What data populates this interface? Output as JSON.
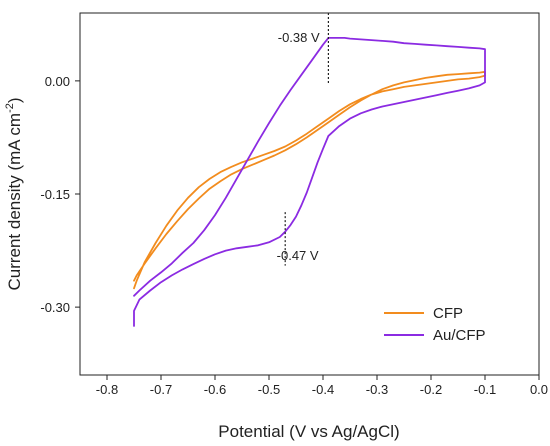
{
  "chart_data": {
    "type": "line",
    "xlabel": "Potential (V vs Ag/AgCl)",
    "ylabel_main": "Current density (mA cm",
    "ylabel_sup": "-2",
    "ylabel_close": ")",
    "xlim": [
      -0.85,
      0.0
    ],
    "ylim": [
      -0.39,
      0.09
    ],
    "xticks": [
      -0.8,
      -0.7,
      -0.6,
      -0.5,
      -0.4,
      -0.3,
      -0.2,
      -0.1,
      0.0
    ],
    "xtick_labels": [
      "-0.8",
      "-0.7",
      "-0.6",
      "-0.5",
      "-0.4",
      "-0.3",
      "-0.2",
      "-0.1",
      "0.0"
    ],
    "yticks": [
      0.0,
      -0.15,
      -0.3
    ],
    "ytick_labels": [
      "0.00",
      "-0.15",
      "-0.30"
    ],
    "grid": false,
    "legend_position": "bottom-right",
    "series": [
      {
        "name": "CFP",
        "color": "#F28C1E",
        "x": [
          -0.75,
          -0.745,
          -0.73,
          -0.71,
          -0.69,
          -0.67,
          -0.65,
          -0.63,
          -0.61,
          -0.59,
          -0.57,
          -0.55,
          -0.53,
          -0.51,
          -0.49,
          -0.47,
          -0.45,
          -0.43,
          -0.41,
          -0.39,
          -0.37,
          -0.35,
          -0.33,
          -0.31,
          -0.29,
          -0.27,
          -0.25,
          -0.23,
          -0.21,
          -0.19,
          -0.17,
          -0.15,
          -0.13,
          -0.11,
          -0.1,
          -0.1,
          -0.11,
          -0.13,
          -0.15,
          -0.17,
          -0.19,
          -0.21,
          -0.23,
          -0.25,
          -0.27,
          -0.29,
          -0.31,
          -0.33,
          -0.35,
          -0.37,
          -0.39,
          -0.41,
          -0.43,
          -0.45,
          -0.47,
          -0.49,
          -0.51,
          -0.53,
          -0.55,
          -0.57,
          -0.59,
          -0.61,
          -0.63,
          -0.65,
          -0.67,
          -0.69,
          -0.71,
          -0.73,
          -0.745,
          -0.75
        ],
        "y": [
          -0.275,
          -0.265,
          -0.24,
          -0.215,
          -0.192,
          -0.172,
          -0.155,
          -0.141,
          -0.13,
          -0.121,
          -0.114,
          -0.108,
          -0.103,
          -0.098,
          -0.093,
          -0.087,
          -0.079,
          -0.07,
          -0.06,
          -0.05,
          -0.04,
          -0.031,
          -0.024,
          -0.018,
          -0.014,
          -0.011,
          -0.008,
          -0.006,
          -0.004,
          -0.002,
          0.0,
          0.002,
          0.003,
          0.005,
          0.007,
          0.012,
          0.011,
          0.01,
          0.009,
          0.008,
          0.006,
          0.004,
          0.001,
          -0.002,
          -0.006,
          -0.011,
          -0.018,
          -0.026,
          -0.035,
          -0.045,
          -0.055,
          -0.065,
          -0.075,
          -0.084,
          -0.092,
          -0.099,
          -0.105,
          -0.111,
          -0.117,
          -0.124,
          -0.133,
          -0.143,
          -0.156,
          -0.17,
          -0.186,
          -0.203,
          -0.222,
          -0.242,
          -0.258,
          -0.265
        ]
      },
      {
        "name": "Au/CFP",
        "color": "#8B2BE2",
        "x": [
          -0.75,
          -0.75,
          -0.74,
          -0.72,
          -0.7,
          -0.68,
          -0.66,
          -0.64,
          -0.62,
          -0.6,
          -0.58,
          -0.56,
          -0.54,
          -0.52,
          -0.5,
          -0.48,
          -0.47,
          -0.46,
          -0.45,
          -0.44,
          -0.43,
          -0.42,
          -0.41,
          -0.4,
          -0.39,
          -0.37,
          -0.35,
          -0.33,
          -0.31,
          -0.29,
          -0.27,
          -0.25,
          -0.23,
          -0.21,
          -0.19,
          -0.17,
          -0.15,
          -0.13,
          -0.11,
          -0.1,
          -0.1,
          -0.11,
          -0.13,
          -0.15,
          -0.17,
          -0.19,
          -0.21,
          -0.23,
          -0.25,
          -0.27,
          -0.29,
          -0.31,
          -0.33,
          -0.35,
          -0.36,
          -0.37,
          -0.38,
          -0.39,
          -0.4,
          -0.42,
          -0.44,
          -0.46,
          -0.48,
          -0.5,
          -0.52,
          -0.54,
          -0.56,
          -0.58,
          -0.6,
          -0.62,
          -0.64,
          -0.66,
          -0.68,
          -0.7,
          -0.72,
          -0.74,
          -0.75
        ],
        "y": [
          -0.325,
          -0.305,
          -0.29,
          -0.278,
          -0.267,
          -0.258,
          -0.25,
          -0.243,
          -0.236,
          -0.23,
          -0.225,
          -0.222,
          -0.22,
          -0.218,
          -0.214,
          -0.207,
          -0.2,
          -0.191,
          -0.18,
          -0.165,
          -0.148,
          -0.128,
          -0.108,
          -0.09,
          -0.073,
          -0.06,
          -0.05,
          -0.043,
          -0.038,
          -0.034,
          -0.031,
          -0.028,
          -0.025,
          -0.022,
          -0.019,
          -0.016,
          -0.013,
          -0.01,
          -0.006,
          -0.002,
          0.042,
          0.043,
          0.044,
          0.045,
          0.046,
          0.047,
          0.048,
          0.049,
          0.05,
          0.052,
          0.053,
          0.054,
          0.055,
          0.056,
          0.057,
          0.057,
          0.057,
          0.057,
          0.048,
          0.028,
          0.008,
          -0.012,
          -0.033,
          -0.056,
          -0.08,
          -0.105,
          -0.13,
          -0.155,
          -0.178,
          -0.198,
          -0.215,
          -0.228,
          -0.242,
          -0.254,
          -0.265,
          -0.278,
          -0.285
        ]
      }
    ],
    "annotations": [
      {
        "text": "-0.38 V",
        "x": -0.39,
        "y_from": -0.005,
        "y_to": 0.09,
        "text_x": -0.445,
        "text_y": 0.057
      },
      {
        "text": "-0.47 V",
        "x": -0.47,
        "y_from": -0.245,
        "y_to": -0.174,
        "text_x": -0.447,
        "text_y": -0.232
      }
    ]
  }
}
